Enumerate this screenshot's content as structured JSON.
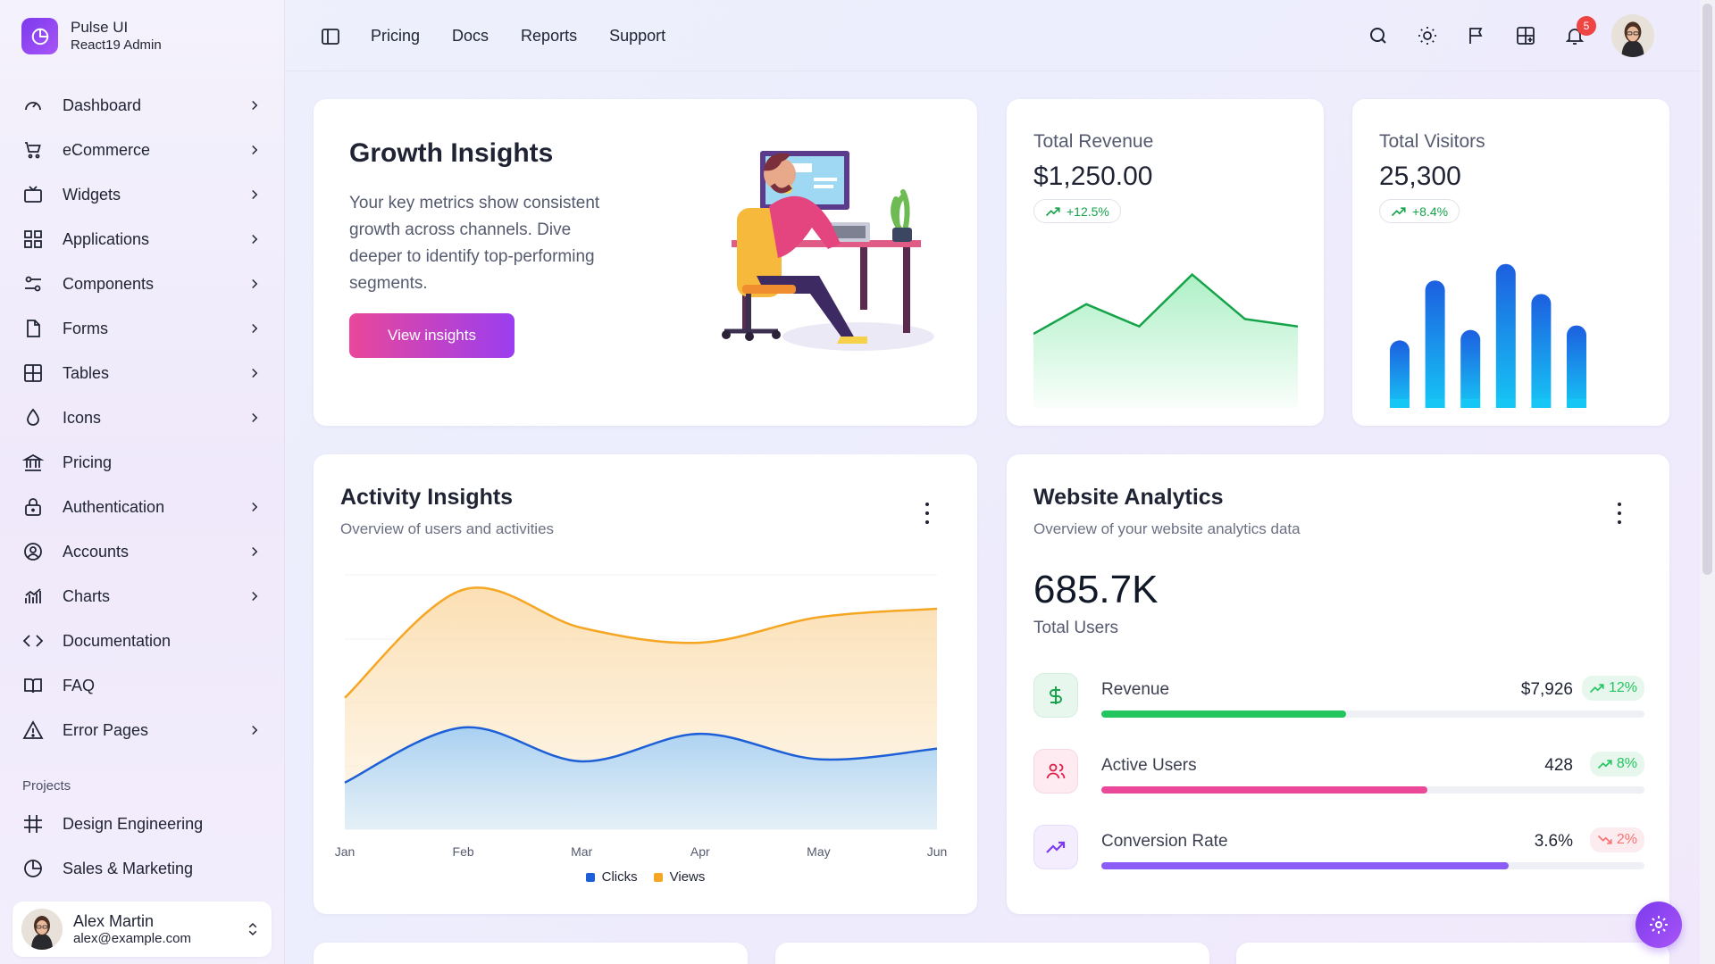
{
  "brand": {
    "name": "Pulse UI",
    "subtitle": "React19 Admin"
  },
  "sidebar": {
    "items": [
      {
        "label": "Dashboard",
        "icon": "gauge-icon",
        "chevron": true
      },
      {
        "label": "eCommerce",
        "icon": "cart-icon",
        "chevron": true
      },
      {
        "label": "Widgets",
        "icon": "tv-icon",
        "chevron": true
      },
      {
        "label": "Applications",
        "icon": "grid-icon",
        "chevron": true
      },
      {
        "label": "Components",
        "icon": "sliders-icon",
        "chevron": true
      },
      {
        "label": "Forms",
        "icon": "file-icon",
        "chevron": true
      },
      {
        "label": "Tables",
        "icon": "table-icon",
        "chevron": true
      },
      {
        "label": "Icons",
        "icon": "droplet-icon",
        "chevron": true
      },
      {
        "label": "Pricing",
        "icon": "bank-icon",
        "chevron": false
      },
      {
        "label": "Authentication",
        "icon": "lock-icon",
        "chevron": true
      },
      {
        "label": "Accounts",
        "icon": "user-circle-icon",
        "chevron": true
      },
      {
        "label": "Charts",
        "icon": "chart-icon",
        "chevron": true
      },
      {
        "label": "Documentation",
        "icon": "code-icon",
        "chevron": false
      },
      {
        "label": "FAQ",
        "icon": "book-icon",
        "chevron": false
      },
      {
        "label": "Error Pages",
        "icon": "warning-icon",
        "chevron": true
      }
    ],
    "projects_title": "Projects",
    "projects": [
      {
        "label": "Design Engineering",
        "icon": "frame-icon"
      },
      {
        "label": "Sales & Marketing",
        "icon": "pie-icon"
      }
    ],
    "user": {
      "name": "Alex Martin",
      "email": "alex@example.com"
    }
  },
  "topnav": {
    "links": [
      "Pricing",
      "Docs",
      "Reports",
      "Support"
    ],
    "notification_count": "5"
  },
  "growth": {
    "title": "Growth Insights",
    "text": "Your key metrics show consistent growth across channels. Dive deeper to identify top-performing segments.",
    "button": "View insights"
  },
  "revenue": {
    "title": "Total Revenue",
    "value": "$1,250.00",
    "change": "+12.5%",
    "chart_data": {
      "type": "area",
      "values": [
        10,
        14,
        11,
        18,
        12,
        11
      ]
    }
  },
  "visitors": {
    "title": "Total Visitors",
    "value": "25,300",
    "change": "+8.4%",
    "chart_data": {
      "type": "bar",
      "values": [
        45,
        85,
        52,
        96,
        76,
        55
      ]
    }
  },
  "activity": {
    "title": "Activity Insights",
    "subtitle": "Overview of users and activities",
    "chart_data": {
      "type": "area",
      "categories": [
        "Jan",
        "Feb",
        "Mar",
        "Apr",
        "May",
        "Jun"
      ],
      "series": [
        {
          "name": "Clicks",
          "color": "#1d5fd6",
          "values": [
            22,
            48,
            32,
            45,
            33,
            38
          ]
        },
        {
          "name": "Views",
          "color": "#f5a623",
          "values": [
            62,
            113,
            95,
            88,
            100,
            104
          ]
        }
      ],
      "ylim": [
        0,
        120
      ]
    }
  },
  "analytics": {
    "title": "Website Analytics",
    "subtitle": "Overview of your website analytics data",
    "total": "685.7K",
    "total_label": "Total Users",
    "metrics": [
      {
        "name": "Revenue",
        "value": "$7,926",
        "change": "12%",
        "trend": "up",
        "progress": 0.45,
        "color": "#22c55e",
        "icon": "dollar-icon"
      },
      {
        "name": "Active Users",
        "value": "428",
        "change": "8%",
        "trend": "up",
        "progress": 0.6,
        "color": "#ec4899",
        "icon": "users-icon"
      },
      {
        "name": "Conversion Rate",
        "value": "3.6%",
        "change": "2%",
        "trend": "down",
        "progress": 0.75,
        "color": "#8b5cf6",
        "icon": "trend-icon"
      }
    ]
  }
}
